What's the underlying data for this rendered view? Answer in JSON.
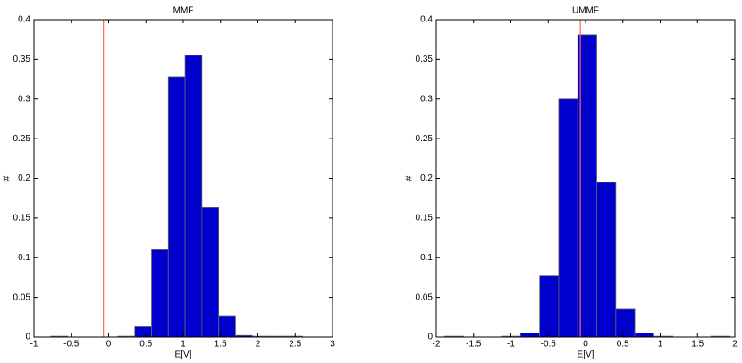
{
  "chart_data": [
    {
      "type": "histogram",
      "title": "MMF",
      "x_label": "E[V]",
      "y_label": "#",
      "bins": [
        -0.775,
        -0.55,
        -0.325,
        -0.1,
        0.125,
        0.35,
        0.575,
        0.8,
        1.025,
        1.25,
        1.475,
        1.7,
        1.925,
        2.15,
        2.375,
        2.6,
        2.825
      ],
      "values": [
        0.001,
        0,
        0,
        0,
        0.001,
        0.013,
        0.11,
        0.328,
        0.355,
        0.163,
        0.027,
        0.002,
        0.001,
        0.001,
        0.001,
        0
      ],
      "color": "#0000cc",
      "edge_color": "#666666",
      "vline": -0.07,
      "vline_color": "#ff6666",
      "xlim": [
        -1,
        3
      ],
      "xticks": [
        -1,
        -0.5,
        0,
        0.5,
        1,
        1.5,
        2,
        2.5,
        3
      ],
      "ylim": [
        0,
        0.4
      ],
      "yticks": [
        0,
        0.05,
        0.1,
        0.15,
        0.2,
        0.25,
        0.3,
        0.35,
        0.4
      ]
    },
    {
      "type": "histogram",
      "title": "UMMF",
      "x_label": "E[V]",
      "y_label": "#",
      "bins": [
        -1.89,
        -1.635,
        -1.38,
        -1.125,
        -0.87,
        -0.615,
        -0.36,
        -0.105,
        0.15,
        0.405,
        0.66,
        0.915,
        1.17,
        1.425,
        1.68,
        1.935
      ],
      "values": [
        0.001,
        0,
        0,
        0.001,
        0.005,
        0.077,
        0.3,
        0.381,
        0.195,
        0.035,
        0.005,
        0.001,
        0,
        0,
        0.001
      ],
      "color": "#0000cc",
      "edge_color": "#666666",
      "vline": -0.07,
      "vline_color": "#ff6666",
      "xlim": [
        -2,
        2
      ],
      "xticks": [
        -2,
        -1.5,
        -1,
        -0.5,
        0,
        0.5,
        1,
        1.5,
        2
      ],
      "ylim": [
        0,
        0.4
      ],
      "yticks": [
        0,
        0.05,
        0.1,
        0.15,
        0.2,
        0.25,
        0.3,
        0.35,
        0.4
      ]
    }
  ]
}
